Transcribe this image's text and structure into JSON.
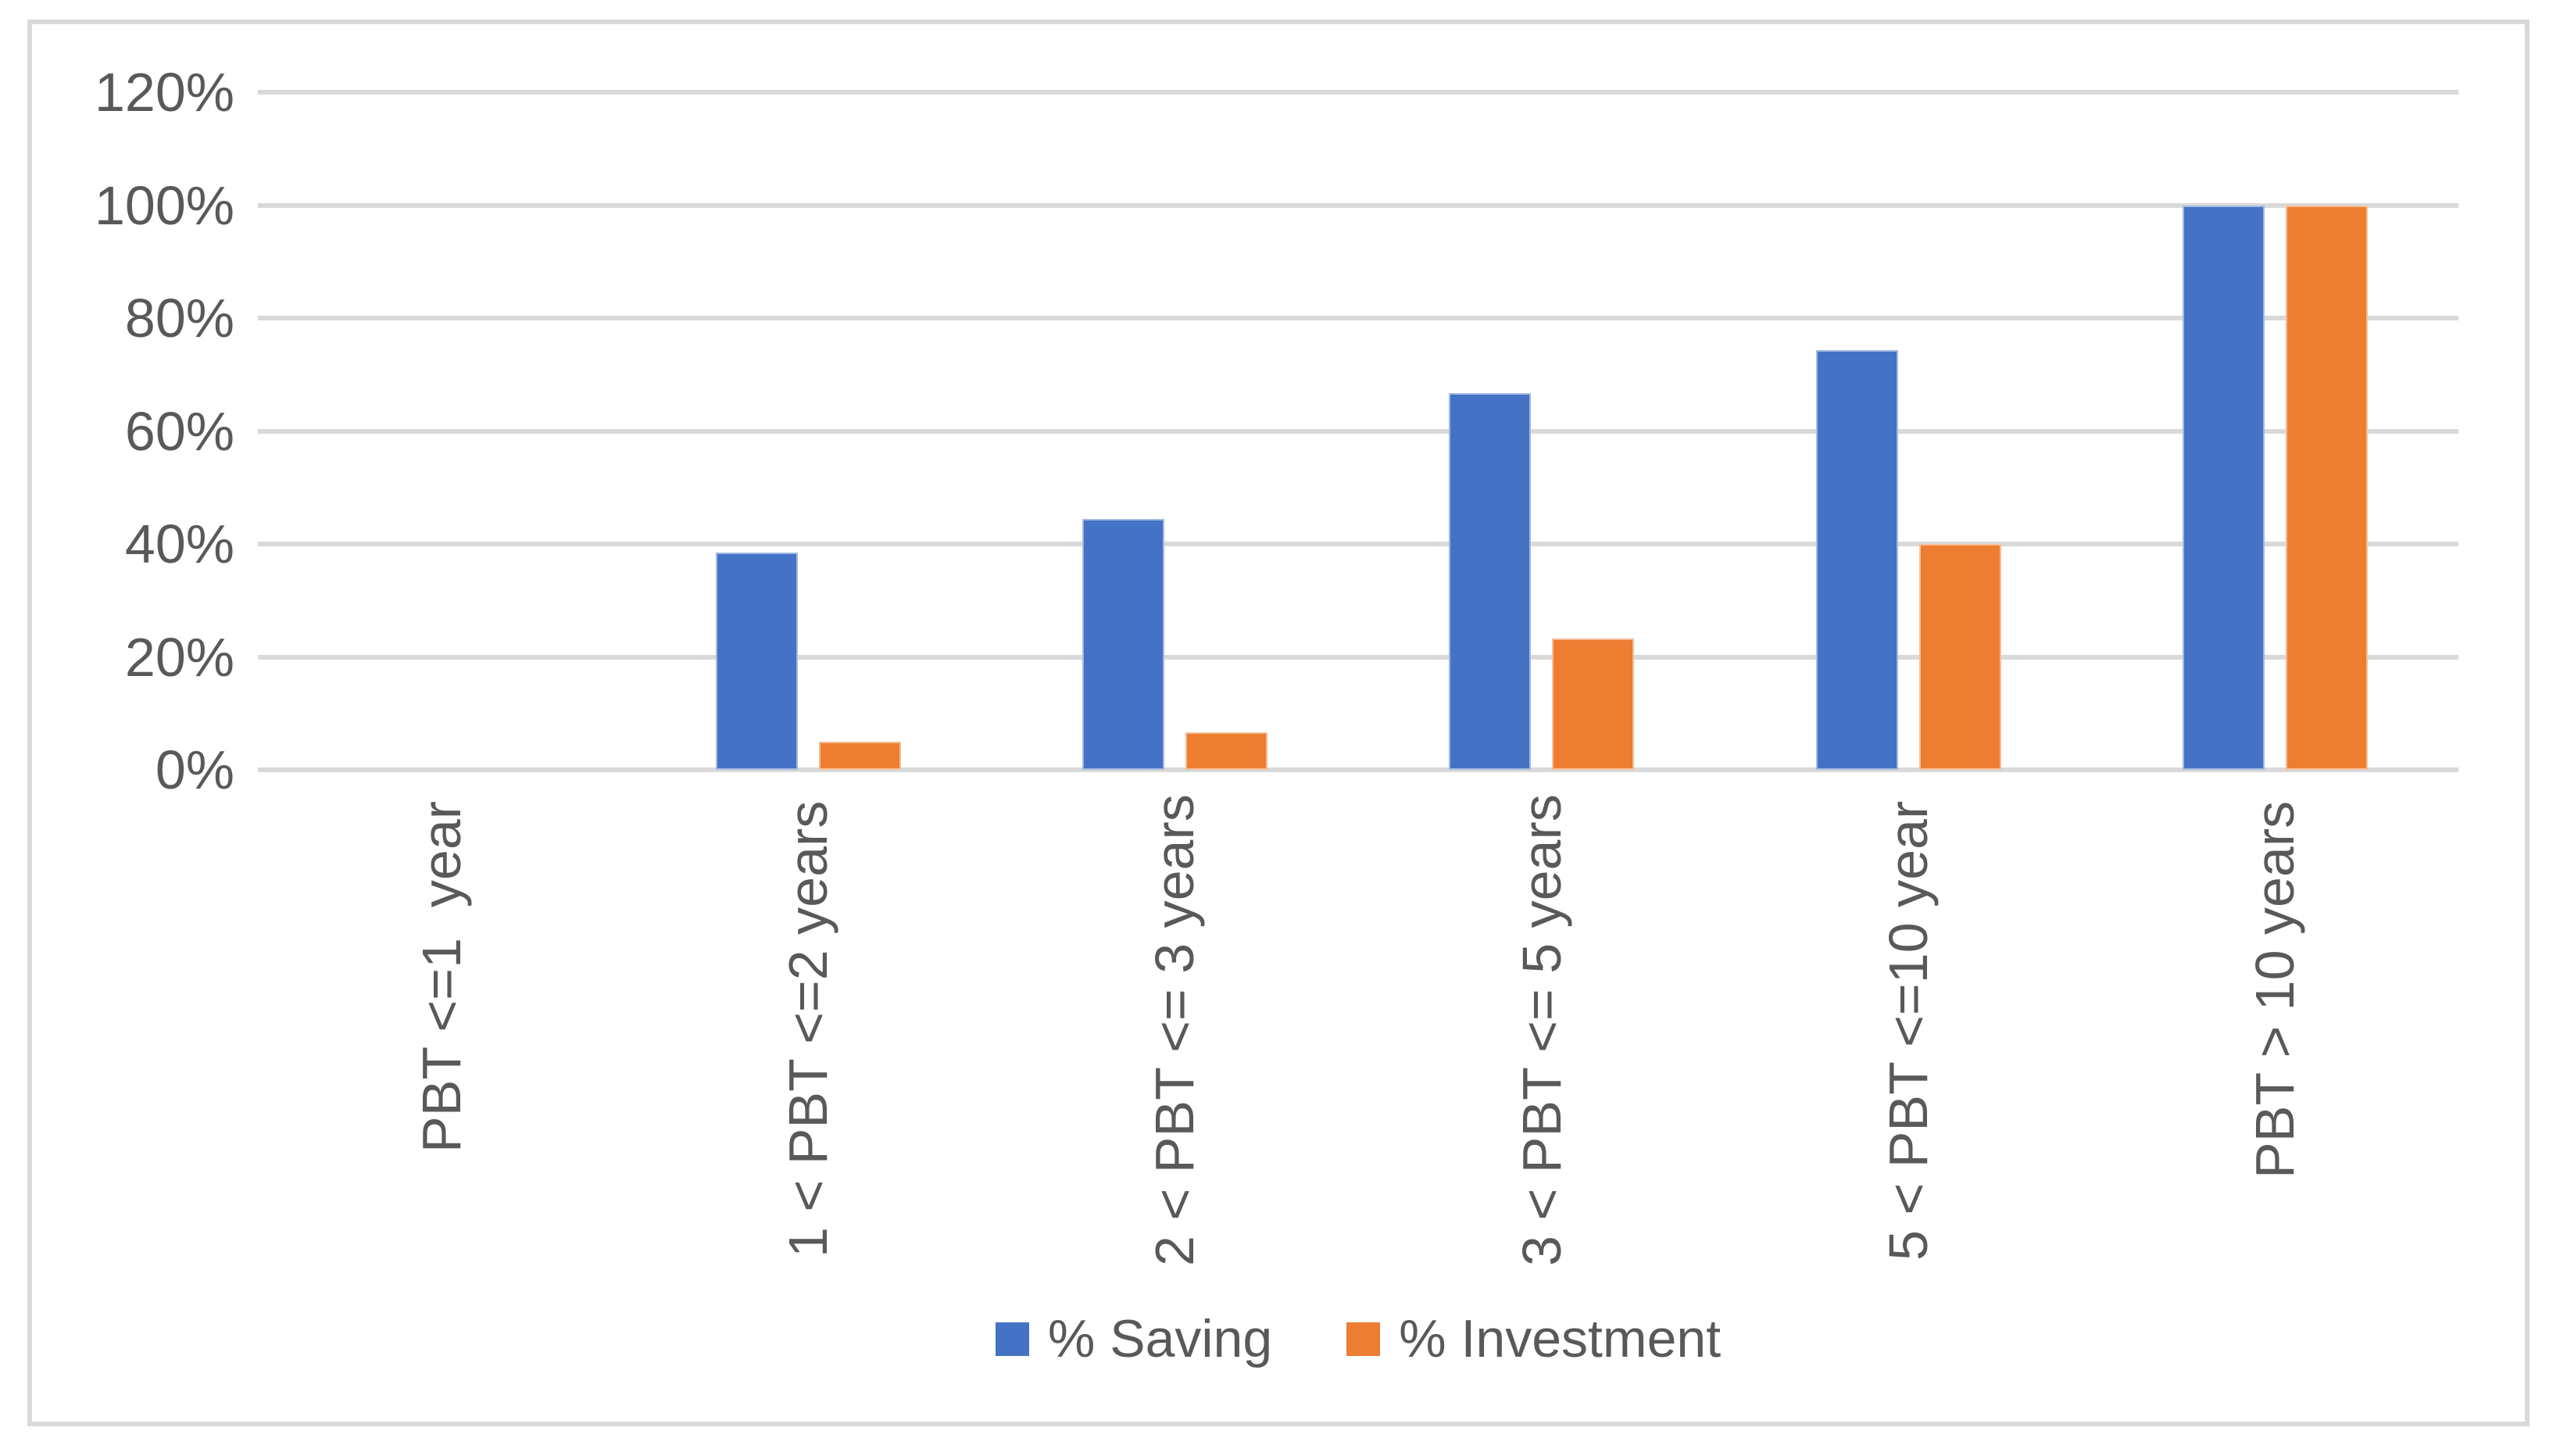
{
  "chart_data": {
    "type": "bar",
    "title": "",
    "categories": [
      "PBT <=1  year",
      "1 < PBT <=2 years",
      "2 < PBT <= 3 years",
      "3 < PBT <= 5 years",
      "5 < PBT <=10 year",
      "PBT > 10 years"
    ],
    "series": [
      {
        "name": "% Saving",
        "color": "#4472C4",
        "values": [
          0,
          38.5,
          44.4,
          66.7,
          74.3,
          100
        ]
      },
      {
        "name": "% Investment",
        "color": "#ED7D31",
        "values": [
          0,
          5,
          6.7,
          23.3,
          40,
          100
        ]
      }
    ],
    "y_ticks": [
      "120%",
      "100%",
      "80%",
      "60%",
      "40%",
      "20%",
      "0%"
    ],
    "ylim": [
      0,
      120
    ],
    "grid": true,
    "legend_position": "bottom"
  },
  "colors": {
    "grid": "#D9D9D9",
    "frame_border": "#D9D9D9",
    "axis_text": "#595959",
    "background": "#FFFFFF",
    "saving_blue": "#4472C4",
    "investment_orange": "#ED7D31"
  }
}
